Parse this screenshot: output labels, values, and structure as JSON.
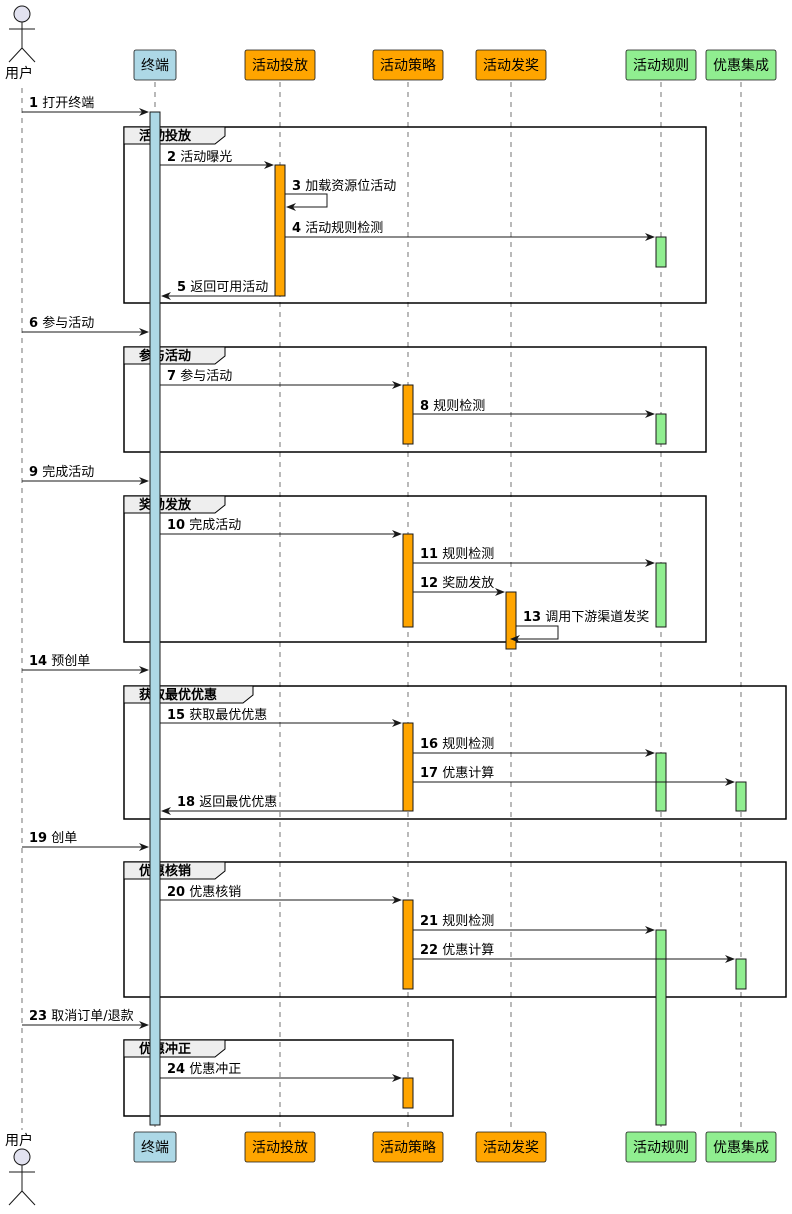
{
  "participants": {
    "user": "用户",
    "terminal": "终端",
    "delivery": "活动投放",
    "strategy": "活动策略",
    "reward": "活动发奖",
    "rules": "活动规则",
    "coupon": "优惠集成"
  },
  "colors": {
    "terminal": "#add8e6",
    "orange": "#ffa500",
    "green": "#90ee90",
    "frame_title_bg": "#eeeeee",
    "actor_fill": "#e2e2f0"
  },
  "frames": [
    {
      "title": "活动投放"
    },
    {
      "title": "参与活动"
    },
    {
      "title": "奖励发放"
    },
    {
      "title": "获取最优优惠"
    },
    {
      "title": "优惠核销"
    },
    {
      "title": "优惠冲正"
    }
  ],
  "messages": [
    {
      "num": "1",
      "text": "打开终端"
    },
    {
      "num": "2",
      "text": "活动曝光"
    },
    {
      "num": "3",
      "text": "加载资源位活动"
    },
    {
      "num": "4",
      "text": "活动规则检测"
    },
    {
      "num": "5",
      "text": "返回可用活动"
    },
    {
      "num": "6",
      "text": "参与活动"
    },
    {
      "num": "7",
      "text": "参与活动"
    },
    {
      "num": "8",
      "text": "规则检测"
    },
    {
      "num": "9",
      "text": "完成活动"
    },
    {
      "num": "10",
      "text": "完成活动"
    },
    {
      "num": "11",
      "text": "规则检测"
    },
    {
      "num": "12",
      "text": "奖励发放"
    },
    {
      "num": "13",
      "text": "调用下游渠道发奖"
    },
    {
      "num": "14",
      "text": "预创单"
    },
    {
      "num": "15",
      "text": "获取最优优惠"
    },
    {
      "num": "16",
      "text": "规则检测"
    },
    {
      "num": "17",
      "text": "优惠计算"
    },
    {
      "num": "18",
      "text": "返回最优优惠"
    },
    {
      "num": "19",
      "text": "创单"
    },
    {
      "num": "20",
      "text": "优惠核销"
    },
    {
      "num": "21",
      "text": "规则检测"
    },
    {
      "num": "22",
      "text": "优惠计算"
    },
    {
      "num": "23",
      "text": "取消订单/退款"
    },
    {
      "num": "24",
      "text": "优惠冲正"
    }
  ]
}
